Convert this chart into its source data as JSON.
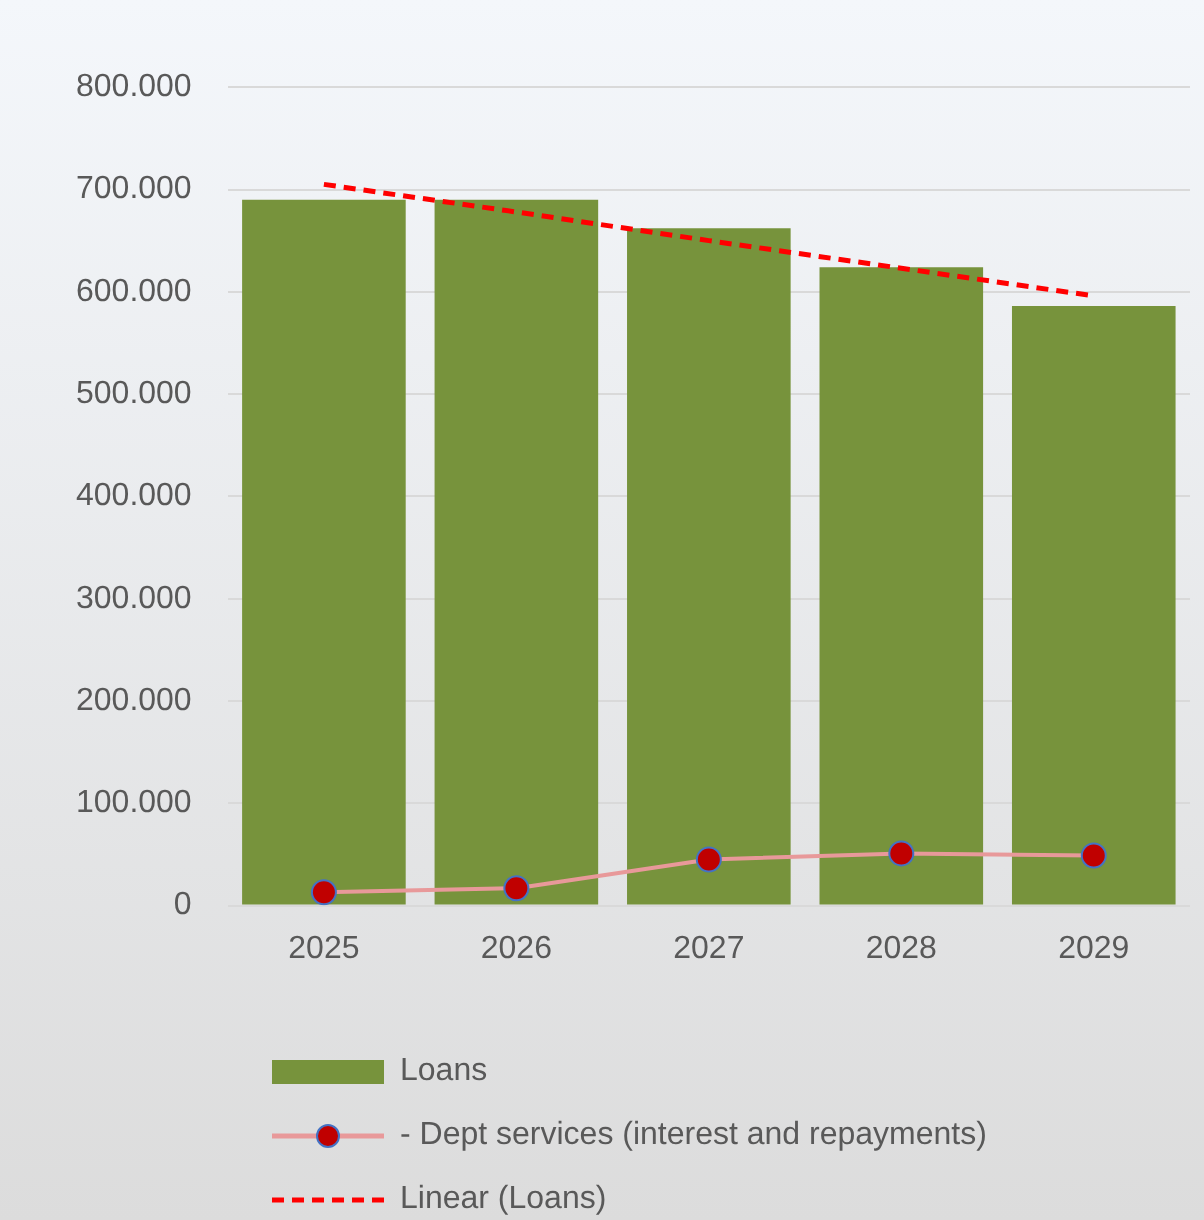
{
  "chart_data": {
    "type": "bar",
    "categories": [
      "2025",
      "2026",
      "2027",
      "2028",
      "2029"
    ],
    "series": [
      {
        "name": "Loans",
        "color": "#77933c",
        "values": [
          690000,
          690000,
          662000,
          624000,
          586000
        ]
      },
      {
        "name": " - Dept services (interest and repayments)",
        "type": "line",
        "color": "#c00000",
        "marker": "circle",
        "values": [
          13000,
          17000,
          45000,
          51000,
          49000
        ]
      },
      {
        "name": "Linear (Loans)",
        "type": "line",
        "color": "#ff0000",
        "marker": "none",
        "line_style": "dashed",
        "values": [
          705000,
          678000,
          650000,
          623000,
          596000
        ]
      }
    ],
    "ylim": [
      0,
      800000
    ],
    "yticks": [
      {
        "value": 0,
        "label": "0"
      },
      {
        "value": 100000,
        "label": "100.000"
      },
      {
        "value": 200000,
        "label": "200.000"
      },
      {
        "value": 300000,
        "label": "300.000"
      },
      {
        "value": 400000,
        "label": "400.000"
      },
      {
        "value": 500000,
        "label": "500.000"
      },
      {
        "value": 600000,
        "label": "600.000"
      },
      {
        "value": 700000,
        "label": "700.000"
      },
      {
        "value": 800000,
        "label": "800.000"
      }
    ],
    "grid": "y",
    "legend": "bottom"
  }
}
